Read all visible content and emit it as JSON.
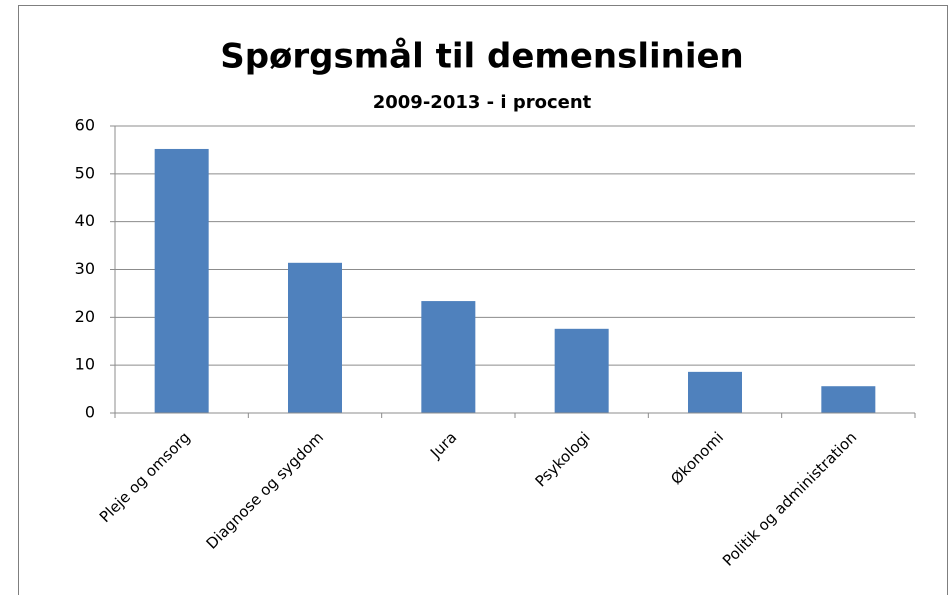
{
  "chart_data": {
    "type": "bar",
    "title": "Spørgsmål til demenslinien",
    "subtitle": "2009-2013 - i procent",
    "categories": [
      "Pleje og omsorg",
      "Diagnose og sygdom",
      "Jura",
      "Psykologi",
      "Økonomi",
      "Politik og administration"
    ],
    "values": [
      55.2,
      31.4,
      23.4,
      17.6,
      8.6,
      5.6
    ],
    "color": "#4f81bd",
    "ylim": [
      0,
      60
    ],
    "yticks": [
      0,
      10,
      20,
      30,
      40,
      50,
      60
    ],
    "grid": true
  }
}
